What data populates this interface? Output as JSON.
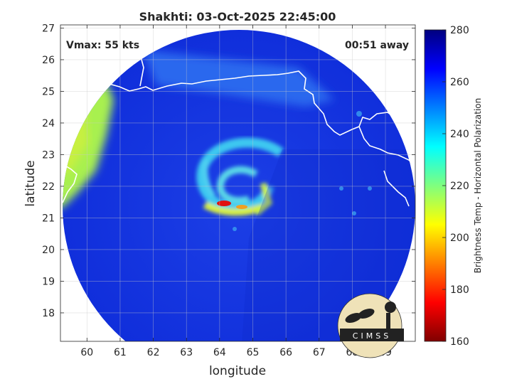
{
  "chart_data": {
    "type": "heatmap",
    "title": "Shakhti: 03-Oct-2025 22:45:00",
    "xlabel": "longitude",
    "ylabel": "latitude",
    "xlim": [
      59.2,
      69.9
    ],
    "ylim": [
      17.1,
      27.1
    ],
    "x_ticks": [
      "60",
      "61",
      "62",
      "63",
      "64",
      "65",
      "66",
      "67",
      "68",
      "69"
    ],
    "y_ticks": [
      "18",
      "19",
      "20",
      "21",
      "22",
      "23",
      "24",
      "25",
      "26",
      "27"
    ],
    "grid": true,
    "annotations": {
      "vmax": "Vmax: 55 kts",
      "time_away": "00:51 away"
    },
    "storm_center": {
      "lon": 64.9,
      "lat": 22.0
    },
    "colorbar": {
      "label": "Brightness Temp - Horizontal Polarization",
      "min": 160,
      "max": 280,
      "ticks": [
        "280",
        "260",
        "240",
        "220",
        "200",
        "180",
        "160"
      ],
      "colormap": "jet"
    },
    "field_summary": {
      "background_value": 262,
      "eyewall_min_value": 172,
      "coastal_land_value": 215
    }
  },
  "logo": {
    "text": "CIMSS"
  },
  "colors": {
    "jet_low": "#800000",
    "jet_mid": "#ffff00",
    "jet_high": "#00007f"
  }
}
